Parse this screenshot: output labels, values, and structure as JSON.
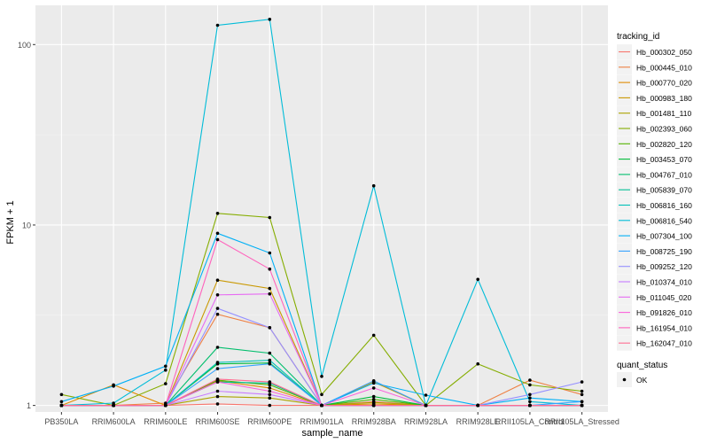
{
  "chart_data": {
    "type": "line",
    "title": "",
    "xlabel": "sample_name",
    "ylabel": "FPKM + 1",
    "y_scale": "log10",
    "ylim": [
      0.92,
      165
    ],
    "y_ticks": [
      1,
      10,
      100
    ],
    "y_tick_labels": [
      "1",
      "10",
      "100"
    ],
    "grid": true,
    "panel_background": "#ebebeb",
    "legend_position": "right",
    "categories": [
      "PB350LA",
      "RRIM600LA",
      "RRIM600LE",
      "RRIM600SE",
      "RRIM600PE",
      "RRIM901LA",
      "RRIM928BA",
      "RRIM928LA",
      "RRIM928LE",
      "RRII105LA_Control",
      "RRII105LA_Stressed"
    ],
    "series": [
      {
        "name": "Hb_000302_050",
        "color": "#F8766D",
        "values": [
          1.0,
          1.0,
          1.0,
          1.02,
          1.0,
          1.0,
          1.05,
          1.0,
          1.0,
          1.0,
          1.0
        ]
      },
      {
        "name": "Hb_000445_010",
        "color": "#EE8043",
        "values": [
          1.0,
          1.0,
          1.03,
          3.2,
          2.7,
          1.0,
          1.0,
          1.0,
          1.0,
          1.38,
          1.15
        ]
      },
      {
        "name": "Hb_000770_020",
        "color": "#E08B00",
        "values": [
          1.0,
          1.3,
          1.0,
          1.37,
          1.25,
          1.0,
          1.02,
          1.0,
          1.0,
          1.0,
          1.0
        ]
      },
      {
        "name": "Hb_000983_180",
        "color": "#C99800",
        "values": [
          1.0,
          1.0,
          1.0,
          4.95,
          4.45,
          1.0,
          1.35,
          1.0,
          1.0,
          1.0,
          1.0
        ]
      },
      {
        "name": "Hb_001481_110",
        "color": "#ABA300",
        "values": [
          1.0,
          1.0,
          1.0,
          1.12,
          1.1,
          1.0,
          1.04,
          1.0,
          1.0,
          1.0,
          1.0
        ]
      },
      {
        "name": "Hb_002393_060",
        "color": "#85AD00",
        "values": [
          1.15,
          1.0,
          1.32,
          11.6,
          11.0,
          1.15,
          2.45,
          1.0,
          1.7,
          1.3,
          1.2
        ]
      },
      {
        "name": "Hb_002820_120",
        "color": "#53B400",
        "values": [
          1.0,
          1.0,
          1.0,
          1.38,
          1.3,
          1.0,
          1.08,
          1.0,
          1.0,
          1.0,
          1.0
        ]
      },
      {
        "name": "Hb_003453_070",
        "color": "#00BA38",
        "values": [
          1.0,
          1.0,
          1.0,
          1.7,
          1.72,
          1.0,
          1.12,
          1.0,
          1.0,
          1.0,
          1.0
        ]
      },
      {
        "name": "Hb_004767_010",
        "color": "#00BE6C",
        "values": [
          1.0,
          1.0,
          1.0,
          2.1,
          1.95,
          1.0,
          1.0,
          1.0,
          1.0,
          1.0,
          1.0
        ]
      },
      {
        "name": "Hb_005839_070",
        "color": "#00C094",
        "values": [
          1.0,
          1.0,
          1.0,
          1.35,
          1.33,
          1.0,
          1.0,
          1.0,
          1.0,
          1.0,
          1.0
        ]
      },
      {
        "name": "Hb_006816_160",
        "color": "#00C0B8",
        "values": [
          1.0,
          1.0,
          1.0,
          1.73,
          1.78,
          1.0,
          1.0,
          1.0,
          1.0,
          1.0,
          1.0
        ]
      },
      {
        "name": "Hb_006816_540",
        "color": "#00BCD8",
        "values": [
          1.0,
          1.03,
          1.57,
          128,
          138,
          1.45,
          16.5,
          1.0,
          5.0,
          1.05,
          1.0
        ]
      },
      {
        "name": "Hb_007304_100",
        "color": "#00B0F6",
        "values": [
          1.05,
          1.28,
          1.65,
          9.0,
          7.0,
          1.0,
          1.33,
          1.14,
          1.0,
          1.1,
          1.05
        ]
      },
      {
        "name": "Hb_008725_190",
        "color": "#35A2FF",
        "values": [
          1.0,
          1.0,
          1.0,
          1.6,
          1.7,
          1.0,
          1.37,
          1.0,
          1.0,
          1.0,
          1.05
        ]
      },
      {
        "name": "Hb_009252_120",
        "color": "#9590FF",
        "values": [
          1.0,
          1.0,
          1.0,
          3.45,
          2.7,
          1.0,
          1.0,
          1.0,
          1.0,
          1.15,
          1.35
        ]
      },
      {
        "name": "Hb_010374_010",
        "color": "#C77CFF",
        "values": [
          1.0,
          1.0,
          1.0,
          1.2,
          1.15,
          1.0,
          1.0,
          1.0,
          1.0,
          1.0,
          1.0
        ]
      },
      {
        "name": "Hb_011045_020",
        "color": "#E76BF3",
        "values": [
          1.0,
          1.0,
          1.0,
          4.1,
          4.15,
          1.0,
          1.0,
          1.0,
          1.0,
          1.0,
          1.0
        ]
      },
      {
        "name": "Hb_091826_010",
        "color": "#FA62DB",
        "values": [
          1.0,
          1.0,
          1.0,
          1.35,
          1.2,
          1.0,
          1.25,
          1.0,
          1.0,
          1.0,
          1.0
        ]
      },
      {
        "name": "Hb_161954_010",
        "color": "#FF62BC",
        "values": [
          1.0,
          1.0,
          1.0,
          8.3,
          5.7,
          1.0,
          1.0,
          1.0,
          1.0,
          1.0,
          1.0
        ]
      },
      {
        "name": "Hb_162047_010",
        "color": "#FF6C91",
        "values": [
          1.0,
          1.0,
          1.0,
          1.4,
          1.35,
          1.0,
          1.0,
          1.0,
          1.0,
          1.0,
          1.0
        ]
      }
    ],
    "legend": {
      "title": "tracking_id",
      "shape_title": "quant_status",
      "shape_entries": [
        "OK"
      ]
    }
  }
}
